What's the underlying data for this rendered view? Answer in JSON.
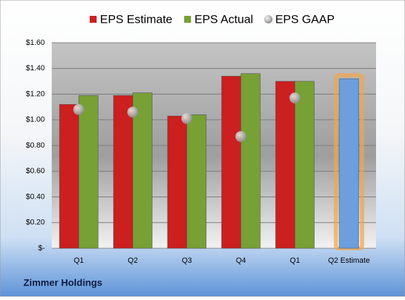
{
  "chart_data": {
    "type": "bar",
    "title": "Zimmer Holdings",
    "categories": [
      "Q1",
      "Q2",
      "Q3",
      "Q4",
      "Q1",
      "Q2 Estimate"
    ],
    "series": [
      {
        "name": "EPS Estimate",
        "color": "#cc1f1f",
        "values": [
          1.12,
          1.19,
          1.03,
          1.34,
          1.3,
          1.32
        ]
      },
      {
        "name": "EPS Actual",
        "color": "#77a035",
        "values": [
          1.19,
          1.21,
          1.04,
          1.36,
          1.3,
          null
        ]
      },
      {
        "name": "EPS GAAP",
        "color": "#a8a8a8",
        "type": "scatter",
        "values": [
          1.08,
          1.06,
          1.01,
          0.87,
          1.17,
          null
        ]
      }
    ],
    "estimate_color": "#6d9fdc",
    "ylim": [
      0,
      1.6
    ],
    "yticks": [
      {
        "value": 0,
        "label": "$-"
      },
      {
        "value": 0.2,
        "label": "$0.20"
      },
      {
        "value": 0.4,
        "label": "$0.40"
      },
      {
        "value": 0.6,
        "label": "$0.60"
      },
      {
        "value": 0.8,
        "label": "$0.80"
      },
      {
        "value": 1.0,
        "label": "$1.00"
      },
      {
        "value": 1.2,
        "label": "$1.20"
      },
      {
        "value": 1.4,
        "label": "$1.40"
      },
      {
        "value": 1.6,
        "label": "$1.60"
      }
    ],
    "grid": true
  }
}
